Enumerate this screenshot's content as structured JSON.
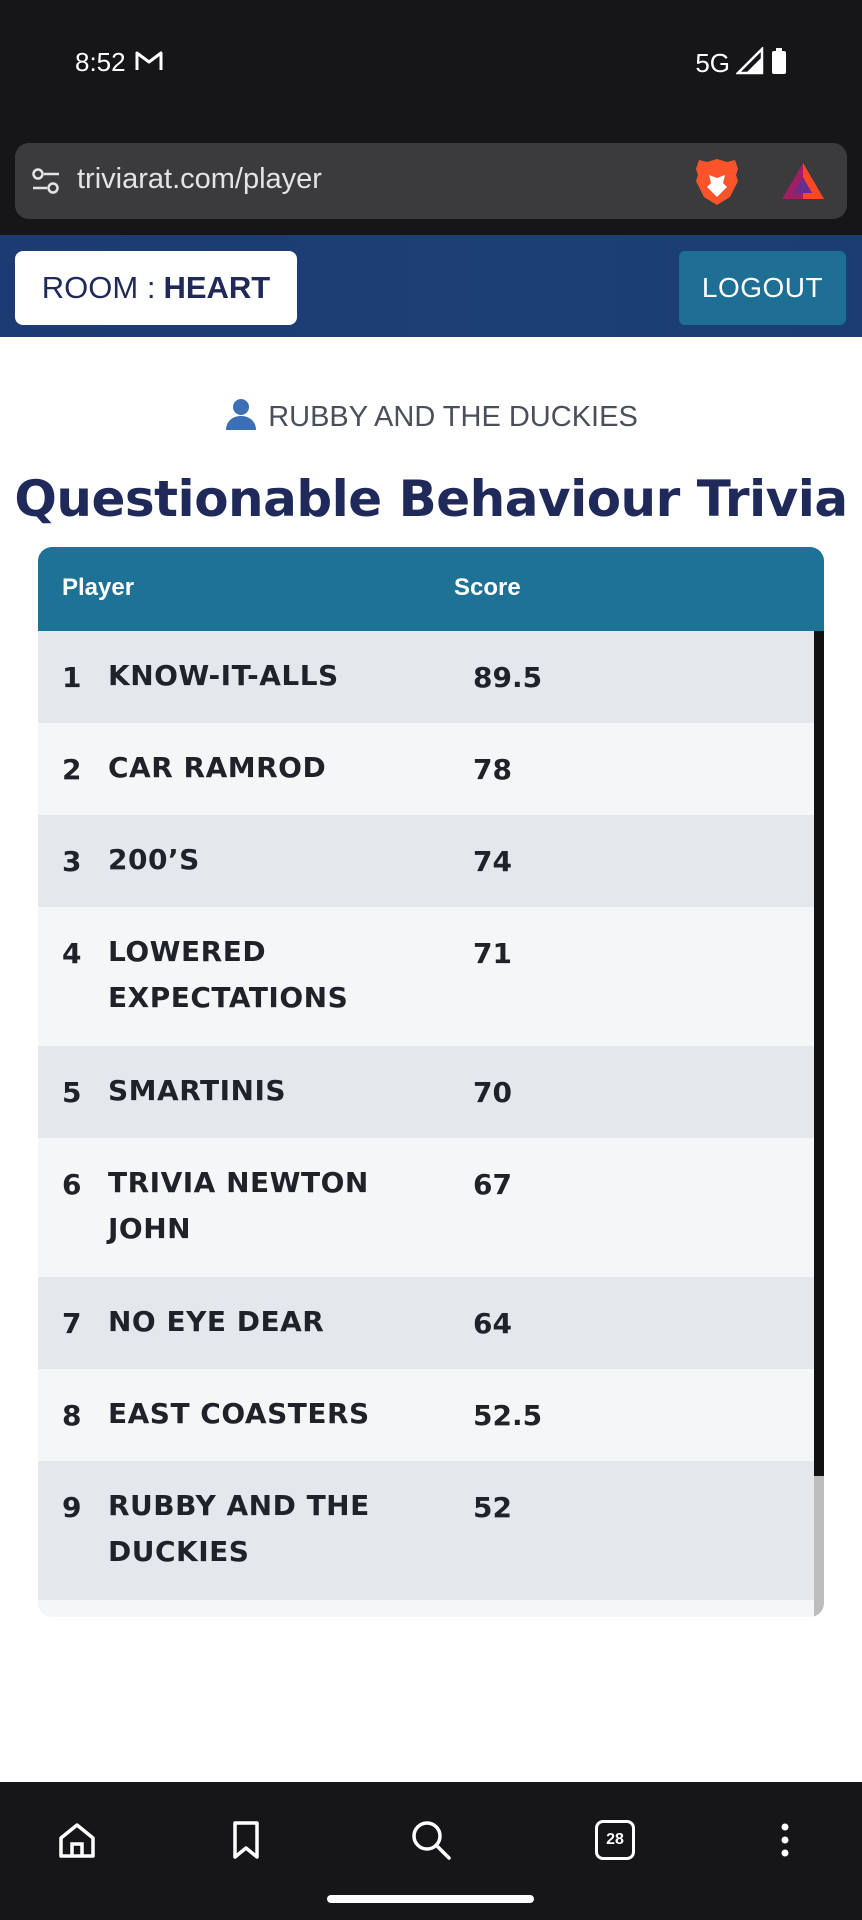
{
  "status_bar": {
    "time": "8:52",
    "network": "5G"
  },
  "browser": {
    "url": "triviarat.com/player"
  },
  "header": {
    "room_label": "ROOM :",
    "room_name": "HEART",
    "logout_label": "LOGOUT"
  },
  "team_name": "RUBBY AND THE DUCKIES",
  "page_title": "Questionable Behaviour Trivia",
  "table": {
    "columns": [
      "Player",
      "Score"
    ],
    "rows": [
      {
        "rank": "1",
        "player": "KNOW-IT-ALLS",
        "score": "89.5"
      },
      {
        "rank": "2",
        "player": "CAR RAMROD",
        "score": "78"
      },
      {
        "rank": "3",
        "player": "200’S",
        "score": "74"
      },
      {
        "rank": "4",
        "player": "LOWERED EXPECTATIONS",
        "score": "71"
      },
      {
        "rank": "5",
        "player": "SMARTINIS",
        "score": "70"
      },
      {
        "rank": "6",
        "player": "TRIVIA NEWTON JOHN",
        "score": "67"
      },
      {
        "rank": "7",
        "player": "NO EYE DEAR",
        "score": "64"
      },
      {
        "rank": "8",
        "player": "EAST COASTERS",
        "score": "52.5"
      },
      {
        "rank": "9",
        "player": "RUBBY AND THE DUCKIES",
        "score": "52"
      }
    ]
  },
  "bottom_nav": {
    "tab_count": "28",
    "items": [
      "home-icon",
      "bookmark-icon",
      "search-icon",
      "tabs-icon",
      "more-icon"
    ]
  }
}
